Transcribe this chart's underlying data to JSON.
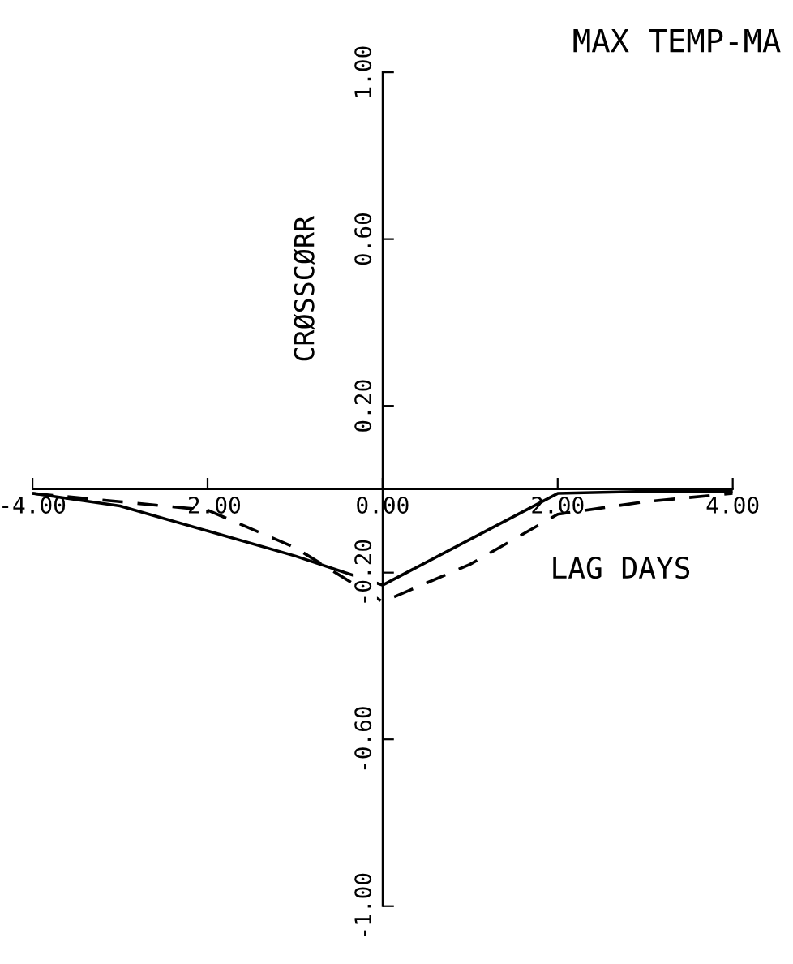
{
  "chart_data": {
    "type": "line",
    "title": "MAX TEMP-MA",
    "xlabel": "LAG DAYS",
    "ylabel": "CRØSSCØRR",
    "x": [
      -4,
      -3,
      -2,
      -1,
      0,
      1,
      2,
      3,
      4
    ],
    "series": [
      {
        "color": "#000000",
        "line_style": "solid",
        "values": [
          -0.01,
          -0.04,
          -0.1,
          -0.16,
          -0.23,
          -0.12,
          -0.01,
          -0.005,
          -0.005
        ]
      },
      {
        "color": "#000000",
        "line_style": "dashed",
        "values": [
          -0.01,
          -0.03,
          -0.05,
          -0.14,
          -0.27,
          -0.18,
          -0.06,
          -0.03,
          -0.01
        ]
      }
    ],
    "xlim": [
      -4,
      4
    ],
    "ylim": [
      -1,
      1
    ],
    "xticks": [
      {
        "value": -4,
        "label": "-4.00"
      },
      {
        "value": -2,
        "label": "-2.00"
      },
      {
        "value": 0,
        "label": "0.00"
      },
      {
        "value": 2,
        "label": "2.00"
      },
      {
        "value": 4,
        "label": "4.00"
      }
    ],
    "yticks": [
      {
        "value": -1,
        "label": "-1.00"
      },
      {
        "value": -0.6,
        "label": "-0.60"
      },
      {
        "value": -0.2,
        "label": "-0.20"
      },
      {
        "value": 0.2,
        "label": "0.20"
      },
      {
        "value": 0.6,
        "label": "0.60"
      },
      {
        "value": 1,
        "label": "1.00"
      }
    ],
    "grid": false,
    "legend": false,
    "marker": "none"
  }
}
